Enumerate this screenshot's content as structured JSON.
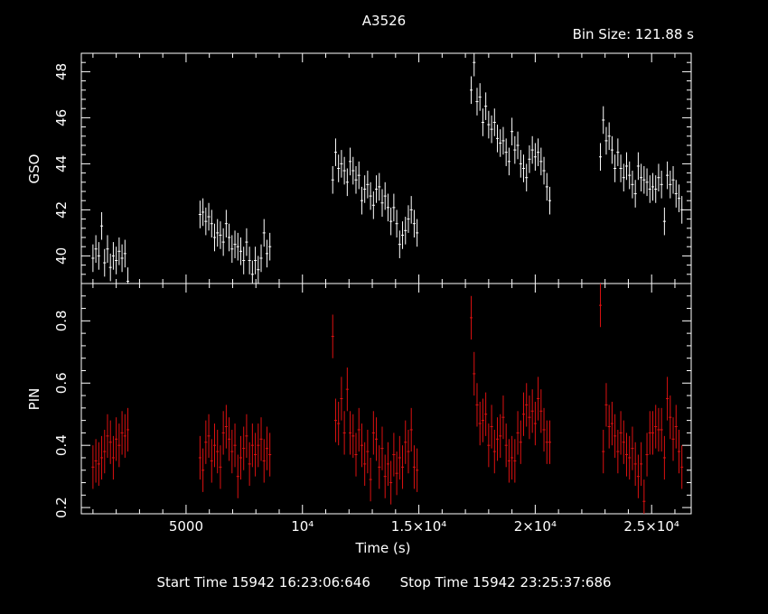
{
  "title": "A3526",
  "bin_size_label": "Bin Size: 121.88 s",
  "footer": {
    "start": "Start Time 15942 16:23:06:646",
    "stop": "Stop Time 15942 23:25:37:686"
  },
  "colors": {
    "background": "#000000",
    "axes": "#ffffff",
    "gso": "#ffffff",
    "pin": "#dd1111"
  },
  "chart_data": [
    {
      "type": "scatter",
      "name": "GSO",
      "ylabel": "GSO",
      "xlabel": "",
      "xlim": [
        500,
        26700
      ],
      "ylim": [
        38.8,
        48.8
      ],
      "xticks": [],
      "yticks": [
        {
          "value": 40,
          "label": "40"
        },
        {
          "value": 42,
          "label": "42"
        },
        {
          "value": 44,
          "label": "44"
        },
        {
          "value": 46,
          "label": "46"
        },
        {
          "value": 48,
          "label": "48"
        }
      ],
      "series": [
        {
          "x": [
            1000,
            1125,
            1250,
            1375,
            1500,
            1625,
            1750,
            1875,
            2000,
            2125,
            2250,
            2375,
            2500,
            5600,
            5725,
            5850,
            5975,
            6100,
            6225,
            6350,
            6475,
            6600,
            6725,
            6850,
            6975,
            7100,
            7225,
            7350,
            7475,
            7600,
            7725,
            7850,
            7975,
            8100,
            8225,
            8350,
            8475,
            8600,
            11300,
            11425,
            11550,
            11675,
            11800,
            11925,
            12050,
            12175,
            12300,
            12425,
            12550,
            12675,
            12800,
            12925,
            13050,
            13175,
            13300,
            13425,
            13550,
            13675,
            13800,
            13925,
            14050,
            14175,
            14300,
            14425,
            14550,
            14675,
            14800,
            14925,
            17250,
            17375,
            17500,
            17625,
            17750,
            17875,
            18000,
            18125,
            18250,
            18375,
            18500,
            18625,
            18750,
            18875,
            19000,
            19125,
            19250,
            19375,
            19500,
            19625,
            19750,
            19875,
            20000,
            20125,
            20250,
            20375,
            20500,
            20625,
            22800,
            22925,
            23050,
            23175,
            23300,
            23425,
            23550,
            23675,
            23800,
            23925,
            24050,
            24175,
            24300,
            24425,
            24550,
            24675,
            24800,
            24925,
            25050,
            25175,
            25300,
            25425,
            25550,
            25675,
            25800,
            25925,
            26050,
            26175,
            26300
          ],
          "y": [
            39.9,
            40.3,
            40.0,
            41.3,
            39.7,
            40.3,
            39.5,
            40.0,
            39.8,
            40.2,
            39.9,
            40.1,
            38.9,
            41.8,
            41.9,
            41.5,
            41.7,
            41.4,
            40.8,
            41.0,
            40.9,
            40.6,
            41.4,
            40.8,
            40.3,
            40.5,
            40.4,
            40.2,
            39.8,
            40.6,
            39.8,
            39.2,
            39.8,
            39.4,
            39.9,
            41.0,
            40.1,
            40.4,
            43.3,
            44.5,
            43.8,
            44.0,
            43.7,
            43.2,
            44.1,
            43.7,
            43.3,
            43.5,
            42.4,
            42.9,
            43.1,
            42.6,
            42.2,
            42.9,
            43.0,
            42.3,
            42.6,
            42.1,
            41.5,
            42.1,
            41.4,
            40.5,
            40.9,
            41.1,
            41.6,
            42.0,
            41.4,
            41.0,
            47.2,
            48.4,
            46.7,
            46.9,
            45.8,
            46.5,
            45.7,
            45.5,
            45.8,
            45.1,
            44.9,
            45.0,
            44.5,
            44.1,
            45.4,
            44.6,
            44.8,
            44.0,
            43.8,
            43.4,
            44.2,
            44.6,
            44.3,
            44.5,
            44.1,
            43.7,
            43.0,
            42.4,
            44.3,
            45.9,
            45.0,
            45.2,
            44.6,
            43.8,
            44.5,
            43.8,
            43.4,
            43.9,
            43.5,
            43.1,
            42.7,
            43.9,
            43.4,
            43.3,
            43.2,
            42.9,
            43.0,
            42.9,
            43.4,
            43.1,
            41.5,
            43.5,
            43.1,
            43.3,
            42.7,
            42.5,
            42.0
          ],
          "yerr": 0.6,
          "color": "#ffffff"
        }
      ]
    },
    {
      "type": "scatter",
      "name": "PIN",
      "ylabel": "PIN",
      "xlabel": "Time (s)",
      "xlim": [
        500,
        26700
      ],
      "ylim": [
        0.18,
        0.92
      ],
      "xticks": [
        {
          "value": 5000,
          "label": "5000"
        },
        {
          "value": 10000,
          "label": "10⁴"
        },
        {
          "value": 15000,
          "label": "1.5×10⁴"
        },
        {
          "value": 20000,
          "label": "2×10⁴"
        },
        {
          "value": 25000,
          "label": "2.5×10⁴"
        }
      ],
      "yticks": [
        {
          "value": 0.2,
          "label": "0.2"
        },
        {
          "value": 0.4,
          "label": "0.4"
        },
        {
          "value": 0.6,
          "label": "0.6"
        },
        {
          "value": 0.8,
          "label": "0.8"
        }
      ],
      "series": [
        {
          "x": [
            1000,
            1125,
            1250,
            1375,
            1500,
            1625,
            1750,
            1875,
            2000,
            2125,
            2250,
            2375,
            2500,
            5600,
            5725,
            5850,
            5975,
            6100,
            6225,
            6350,
            6475,
            6600,
            6725,
            6850,
            6975,
            7100,
            7225,
            7350,
            7475,
            7600,
            7725,
            7850,
            7975,
            8100,
            8225,
            8350,
            8475,
            8600,
            11300,
            11425,
            11550,
            11675,
            11800,
            11925,
            12050,
            12175,
            12300,
            12425,
            12550,
            12675,
            12800,
            12925,
            13050,
            13175,
            13300,
            13425,
            13550,
            13675,
            13800,
            13925,
            14050,
            14175,
            14300,
            14425,
            14550,
            14675,
            14800,
            14925,
            17250,
            17375,
            17500,
            17625,
            17750,
            17875,
            18000,
            18125,
            18250,
            18375,
            18500,
            18625,
            18750,
            18875,
            19000,
            19125,
            19250,
            19375,
            19500,
            19625,
            19750,
            19875,
            20000,
            20125,
            20250,
            20375,
            20500,
            20625,
            22800,
            22925,
            23050,
            23175,
            23300,
            23425,
            23550,
            23675,
            23800,
            23925,
            24050,
            24175,
            24300,
            24425,
            24550,
            24675,
            24800,
            24925,
            25050,
            25175,
            25300,
            25425,
            25550,
            25675,
            25800,
            25925,
            26050,
            26175,
            26300
          ],
          "y": [
            0.33,
            0.35,
            0.34,
            0.36,
            0.38,
            0.43,
            0.41,
            0.36,
            0.42,
            0.4,
            0.44,
            0.43,
            0.45,
            0.36,
            0.32,
            0.41,
            0.43,
            0.35,
            0.4,
            0.38,
            0.33,
            0.44,
            0.46,
            0.42,
            0.38,
            0.4,
            0.3,
            0.36,
            0.39,
            0.43,
            0.34,
            0.4,
            0.37,
            0.4,
            0.42,
            0.35,
            0.39,
            0.37,
            0.75,
            0.48,
            0.47,
            0.55,
            0.44,
            0.58,
            0.44,
            0.43,
            0.37,
            0.45,
            0.4,
            0.34,
            0.38,
            0.29,
            0.44,
            0.42,
            0.33,
            0.39,
            0.3,
            0.34,
            0.28,
            0.37,
            0.31,
            0.36,
            0.33,
            0.41,
            0.38,
            0.45,
            0.33,
            0.32,
            0.81,
            0.63,
            0.53,
            0.47,
            0.48,
            0.5,
            0.4,
            0.46,
            0.38,
            0.42,
            0.43,
            0.49,
            0.4,
            0.35,
            0.36,
            0.35,
            0.44,
            0.41,
            0.5,
            0.53,
            0.49,
            0.51,
            0.47,
            0.55,
            0.51,
            0.45,
            0.41,
            0.41,
            0.85,
            0.38,
            0.53,
            0.46,
            0.47,
            0.43,
            0.38,
            0.44,
            0.41,
            0.37,
            0.36,
            0.39,
            0.34,
            0.3,
            0.34,
            0.22,
            0.37,
            0.44,
            0.44,
            0.46,
            0.45,
            0.45,
            0.36,
            0.55,
            0.49,
            0.42,
            0.46,
            0.38,
            0.33
          ],
          "yerr": 0.07,
          "color": "#dd1111"
        }
      ]
    }
  ]
}
